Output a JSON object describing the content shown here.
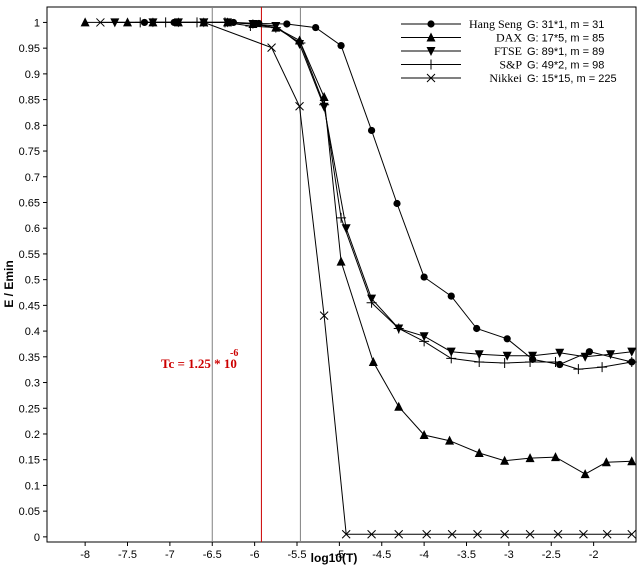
{
  "chart_data": {
    "type": "line",
    "title": "",
    "xlabel": "log10(T)",
    "ylabel": "E / Emin",
    "xlim": [
      -8.45,
      -1.5
    ],
    "ylim": [
      -0.01,
      1.03
    ],
    "grid": false,
    "legend_position": "top-right",
    "x_ticks": [
      "-8",
      "-7.5",
      "-7",
      "-6.5",
      "-6",
      "-5.5",
      "-5",
      "-4.5",
      "-4",
      "-3.5",
      "-3",
      "-2.5",
      "-2"
    ],
    "y_ticks": [
      "0",
      "0.05",
      "0.1",
      "0.15",
      "0.2",
      "0.25",
      "0.3",
      "0.35",
      "0.4",
      "0.45",
      "0.5",
      "0.55",
      "0.6",
      "0.65",
      "0.7",
      "0.75",
      "0.8",
      "0.85",
      "0.9",
      "0.95",
      "1"
    ],
    "vertical_lines": [
      {
        "x": -6.5,
        "color": "#808080"
      },
      {
        "x": -5.92,
        "color": "#cc0000"
      },
      {
        "x": -5.46,
        "color": "#808080"
      }
    ],
    "annotation": {
      "text": "Tc = 1.25 * 10",
      "superscript": "-6",
      "x": -6.45,
      "y": 0.335,
      "color": "#cc0000"
    },
    "series": [
      {
        "name": "Hang Seng",
        "info": "G: 31*1, m = 31",
        "marker": "circle",
        "x": [
          -7.3,
          -6.95,
          -6.6,
          -6.25,
          -5.95,
          -5.62,
          -5.28,
          -4.98,
          -4.62,
          -4.32,
          -4.0,
          -3.68,
          -3.38,
          -3.02,
          -2.72,
          -2.4,
          -2.05,
          -1.55
        ],
        "y": [
          1.0,
          1.0,
          1.0,
          1.0,
          0.998,
          0.997,
          0.99,
          0.955,
          0.79,
          0.648,
          0.505,
          0.468,
          0.405,
          0.385,
          0.345,
          0.335,
          0.36,
          0.34
        ]
      },
      {
        "name": "DAX",
        "info": "G: 17*5, m = 85",
        "marker": "triangle",
        "x": [
          -8.0,
          -7.5,
          -7.2,
          -6.9,
          -6.6,
          -6.32,
          -6.02,
          -5.75,
          -5.47,
          -5.18,
          -4.98,
          -4.6,
          -4.3,
          -4.0,
          -3.7,
          -3.35,
          -3.05,
          -2.75,
          -2.45,
          -2.1,
          -1.85,
          -1.55
        ],
        "y": [
          1.0,
          1.0,
          1.0,
          1.0,
          1.0,
          1.0,
          0.997,
          0.99,
          0.965,
          0.855,
          0.535,
          0.34,
          0.253,
          0.198,
          0.187,
          0.163,
          0.148,
          0.153,
          0.155,
          0.122,
          0.145,
          0.147
        ]
      },
      {
        "name": "FTSE",
        "info": "G: 89*1, m = 89",
        "marker": "triangle-down",
        "x": [
          -7.65,
          -7.2,
          -6.9,
          -6.6,
          -6.32,
          -6.02,
          -5.75,
          -5.47,
          -5.18,
          -4.92,
          -4.62,
          -4.3,
          -4.0,
          -3.68,
          -3.35,
          -3.02,
          -2.72,
          -2.4,
          -2.1,
          -1.8,
          -1.55
        ],
        "y": [
          1.0,
          1.0,
          1.0,
          1.0,
          1.0,
          0.997,
          0.993,
          0.958,
          0.836,
          0.6,
          0.463,
          0.405,
          0.39,
          0.36,
          0.355,
          0.352,
          0.352,
          0.358,
          0.35,
          0.355,
          0.36
        ]
      },
      {
        "name": "S&P",
        "info": "G: 49*2, m = 98",
        "marker": "plus",
        "x": [
          -7.35,
          -7.05,
          -6.68,
          -6.35,
          -6.05,
          -5.75,
          -5.46,
          -5.18,
          -4.98,
          -4.62,
          -4.3,
          -4.0,
          -3.68,
          -3.35,
          -3.05,
          -2.75,
          -2.45,
          -2.18,
          -1.9,
          -1.55
        ],
        "y": [
          1.0,
          1.0,
          1.0,
          1.0,
          0.993,
          0.99,
          0.96,
          0.84,
          0.62,
          0.455,
          0.405,
          0.38,
          0.347,
          0.34,
          0.338,
          0.34,
          0.34,
          0.326,
          0.33,
          0.34
        ]
      },
      {
        "name": "Nikkei",
        "info": "G: 15*15, m = 225",
        "marker": "x",
        "x": [
          -7.82,
          -6.6,
          -5.8,
          -5.47,
          -5.18,
          -4.92,
          -4.62,
          -4.3,
          -3.97,
          -3.67,
          -3.37,
          -3.05,
          -2.75,
          -2.42,
          -2.12,
          -1.84,
          -1.55
        ],
        "y": [
          1.0,
          1.0,
          0.951,
          0.837,
          0.43,
          0.005,
          0.005,
          0.005,
          0.005,
          0.005,
          0.005,
          0.005,
          0.005,
          0.005,
          0.005,
          0.005,
          0.005
        ]
      }
    ]
  }
}
